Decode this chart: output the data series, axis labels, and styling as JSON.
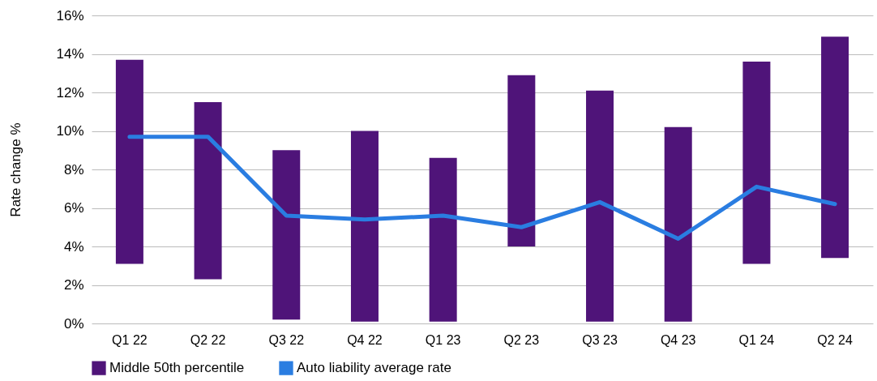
{
  "chart_data": {
    "type": "bar",
    "ylabel": "Rate change %",
    "categories": [
      "Q1 22",
      "Q2 22",
      "Q3 22",
      "Q4 22",
      "Q1 23",
      "Q2 23",
      "Q3 23",
      "Q4 23",
      "Q1 24",
      "Q2 24"
    ],
    "series": [
      {
        "name": "Middle 50th percentile",
        "color": "#4f1479",
        "base": [
          3.1,
          2.3,
          0.2,
          0.1,
          0.1,
          4.0,
          0.1,
          0.1,
          3.1,
          3.4
        ],
        "values": [
          10.6,
          9.2,
          8.8,
          9.9,
          8.5,
          8.9,
          12.0,
          10.1,
          10.5,
          11.5
        ]
      },
      {
        "name": "Auto liability average rate",
        "type": "line",
        "color": "#2a7de1",
        "values": [
          9.7,
          9.7,
          5.6,
          5.4,
          5.6,
          5.0,
          6.3,
          4.4,
          7.1,
          6.2
        ]
      }
    ],
    "ylim": [
      0,
      16
    ],
    "yticks": [
      {
        "value": 0,
        "label": "0%"
      },
      {
        "value": 2,
        "label": "2%"
      },
      {
        "value": 4,
        "label": "4%"
      },
      {
        "value": 6,
        "label": "6%"
      },
      {
        "value": 8,
        "label": "8%"
      },
      {
        "value": 10,
        "label": "10%"
      },
      {
        "value": 12,
        "label": "12%"
      },
      {
        "value": 14,
        "label": "14%"
      },
      {
        "value": 16,
        "label": "16%"
      }
    ],
    "grid": "y",
    "legend": "bottom",
    "line_style": "solid"
  }
}
